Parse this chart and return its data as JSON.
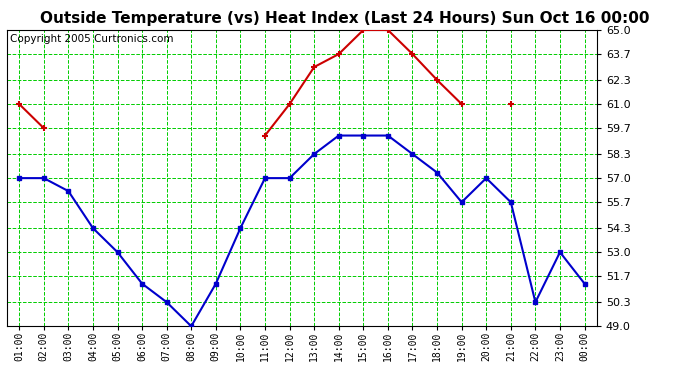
{
  "title": "Outside Temperature (vs) Heat Index (Last 24 Hours) Sun Oct 16 00:00",
  "copyright": "Copyright 2005 Curtronics.com",
  "x_labels": [
    "01:00",
    "02:00",
    "03:00",
    "04:00",
    "05:00",
    "06:00",
    "07:00",
    "08:00",
    "09:00",
    "10:00",
    "11:00",
    "12:00",
    "13:00",
    "14:00",
    "15:00",
    "16:00",
    "17:00",
    "18:00",
    "19:00",
    "20:00",
    "21:00",
    "22:00",
    "23:00",
    "00:00"
  ],
  "blue_values": [
    57.0,
    57.0,
    56.3,
    54.3,
    53.0,
    51.3,
    50.3,
    49.0,
    51.3,
    54.3,
    57.0,
    57.0,
    58.3,
    59.3,
    59.3,
    59.3,
    58.3,
    57.3,
    55.7,
    57.0,
    55.7,
    50.3,
    53.0,
    51.3
  ],
  "red_values": [
    61.0,
    59.7,
    null,
    null,
    null,
    null,
    null,
    null,
    null,
    null,
    59.3,
    61.0,
    63.0,
    63.7,
    65.0,
    65.0,
    63.7,
    62.3,
    61.0,
    null,
    61.0,
    null,
    null,
    null
  ],
  "ylim": [
    49.0,
    65.0
  ],
  "yticks": [
    49.0,
    50.3,
    51.7,
    53.0,
    54.3,
    55.7,
    57.0,
    58.3,
    59.7,
    61.0,
    62.3,
    63.7,
    65.0
  ],
  "bg_color": "#ffffff",
  "plot_bg": "#ffffff",
  "grid_color": "#00cc00",
  "blue_color": "#0000cc",
  "red_color": "#cc0000",
  "title_fontsize": 11,
  "copyright_fontsize": 7.5
}
